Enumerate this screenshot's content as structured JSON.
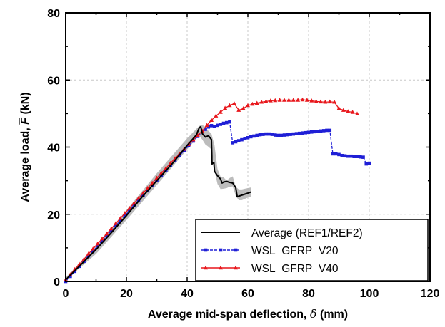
{
  "chart_data": {
    "type": "line",
    "title": "",
    "xlabel_main": "Average mid-span deflection, ",
    "xlabel_symbol": "δ",
    "xlabel_unit": " (mm)",
    "ylabel_main": "Average load, ",
    "ylabel_symbol": "F",
    "ylabel_unit": " (kN)",
    "xlim": [
      0,
      120
    ],
    "ylim": [
      0,
      80
    ],
    "xticks": [
      0,
      20,
      40,
      60,
      80,
      100,
      120
    ],
    "yticks": [
      0,
      20,
      40,
      60,
      80
    ],
    "grid": "dashed",
    "legend_position": "bottom-right",
    "colors": {
      "average": "#000000",
      "band": "#b0b0b0",
      "v20": "#1f1fd6",
      "v40": "#e8161b"
    },
    "envelope": {
      "x": [
        0,
        10,
        20,
        30,
        40,
        44,
        45,
        46,
        47,
        48,
        49,
        50,
        51,
        52,
        53,
        54,
        55,
        56,
        57,
        58,
        59,
        60,
        61
      ],
      "upper": [
        1.2,
        10.2,
        21.2,
        32.2,
        42.6,
        46.3,
        46.6,
        46.0,
        44.8,
        44.0,
        40.5,
        33.5,
        31.2,
        31.0,
        30.0,
        30.8,
        31.3,
        28.2,
        27.4,
        27.4,
        27.6,
        27.8,
        28.0
      ],
      "lower": [
        0.4,
        8.2,
        18.3,
        28.7,
        39.3,
        43.5,
        42.2,
        40.8,
        40.1,
        39.3,
        33.0,
        29.0,
        27.5,
        27.6,
        27.8,
        28.2,
        28.3,
        25.5,
        24.2,
        24.2,
        24.6,
        25.0,
        25.2
      ]
    },
    "series": [
      {
        "name": "Average (REF1/REF2)",
        "marker": "none",
        "x": [
          0,
          5,
          10,
          15,
          20,
          25,
          30,
          35,
          40,
          43,
          44,
          44.5,
          45,
          46,
          47,
          48,
          48.2,
          48.8,
          49,
          50,
          51,
          51.5,
          52,
          53,
          54,
          55,
          55.5,
          56,
          56.5,
          57,
          58,
          59,
          60,
          61
        ],
        "y": [
          0.5,
          5.0,
          9.5,
          14.5,
          19.6,
          25.0,
          30.0,
          35.0,
          40.5,
          43.6,
          45.8,
          46.1,
          44.0,
          43.0,
          43.4,
          42.3,
          35.0,
          35.5,
          32.8,
          31.5,
          30.5,
          29.3,
          29.6,
          29.8,
          29.5,
          29.3,
          28.6,
          28.0,
          25.2,
          25.4,
          25.7,
          26.0,
          26.3,
          26.6
        ]
      },
      {
        "name": "WSL_GFRP_V20",
        "marker": "square",
        "x": [
          0,
          1.5,
          3,
          4.5,
          6,
          7.5,
          9,
          10.5,
          12,
          13.5,
          15,
          16.5,
          18,
          19.5,
          21,
          22.5,
          24,
          25.5,
          27,
          28.5,
          30,
          31.5,
          33,
          34.5,
          36,
          37.5,
          39,
          40.5,
          42,
          43.5,
          45,
          46,
          47,
          48,
          49,
          50,
          51,
          52,
          53,
          54,
          55,
          56,
          57,
          58,
          59,
          60,
          61,
          62,
          63,
          64,
          65,
          66,
          67,
          68,
          69,
          70,
          71,
          72,
          73,
          74,
          75,
          76,
          77,
          78,
          79,
          80,
          81,
          82,
          83,
          84,
          85,
          86,
          87,
          88,
          89,
          90,
          91,
          92,
          93,
          94,
          95,
          96,
          97,
          98,
          99,
          100
        ],
        "y": [
          0,
          1.5,
          3.0,
          4.5,
          6.0,
          7.6,
          9.1,
          10.6,
          12.1,
          13.6,
          15.1,
          16.6,
          18.1,
          19.6,
          21.1,
          22.6,
          24.1,
          25.6,
          27.0,
          28.5,
          30.0,
          31.5,
          33.0,
          34.5,
          36.0,
          37.5,
          38.9,
          40.4,
          41.8,
          43.2,
          44.6,
          45.3,
          46.0,
          46.4,
          46.2,
          46.5,
          46.8,
          47.1,
          47.3,
          47.5,
          41.3,
          41.6,
          41.9,
          42.2,
          42.5,
          42.8,
          43.1,
          43.3,
          43.5,
          43.7,
          43.8,
          43.9,
          43.9,
          43.8,
          43.6,
          43.5,
          43.5,
          43.6,
          43.7,
          43.8,
          43.9,
          44.0,
          44.1,
          44.2,
          44.3,
          44.4,
          44.5,
          44.6,
          44.7,
          44.8,
          44.9,
          45.0,
          45.0,
          38.0,
          38.0,
          37.8,
          37.5,
          37.4,
          37.3,
          37.3,
          37.2,
          37.2,
          37.1,
          37.0,
          35.0,
          35.2
        ]
      },
      {
        "name": "WSL_GFRP_V40",
        "marker": "triangle",
        "x": [
          0,
          1.5,
          3,
          4.5,
          6,
          7.5,
          9,
          10.5,
          12,
          13.5,
          15,
          16.5,
          18,
          19.5,
          21,
          22.5,
          24,
          25.5,
          27,
          28.5,
          30,
          31.5,
          33,
          34.5,
          36,
          37.5,
          39,
          40.5,
          42,
          43.5,
          45,
          46.5,
          48,
          49.5,
          51,
          52.5,
          54,
          55.5,
          57,
          58.5,
          60,
          61.5,
          63,
          64.5,
          66,
          67.5,
          69,
          70.5,
          72,
          73.5,
          75,
          76.5,
          78,
          79.5,
          81,
          82.5,
          84,
          85.5,
          87,
          88.5,
          90,
          91.5,
          93,
          94.5,
          96
        ],
        "y": [
          0.5,
          2.0,
          3.6,
          5.1,
          6.6,
          8.2,
          9.7,
          11.2,
          12.7,
          14.2,
          15.7,
          17.3,
          18.8,
          20.3,
          21.8,
          23.3,
          24.8,
          26.3,
          27.8,
          29.3,
          30.8,
          32.3,
          33.7,
          35.2,
          36.6,
          38.0,
          39.4,
          40.8,
          42.2,
          43.5,
          44.8,
          46.5,
          48.0,
          49.3,
          50.4,
          51.6,
          52.4,
          53.0,
          51.0,
          51.5,
          52.4,
          52.8,
          53.1,
          53.4,
          53.6,
          53.8,
          53.9,
          54.0,
          54.0,
          54.0,
          54.0,
          54.0,
          54.1,
          54.0,
          53.8,
          53.6,
          53.5,
          53.4,
          53.5,
          53.4,
          51.5,
          51.0,
          50.6,
          50.4,
          49.9
        ]
      }
    ]
  }
}
